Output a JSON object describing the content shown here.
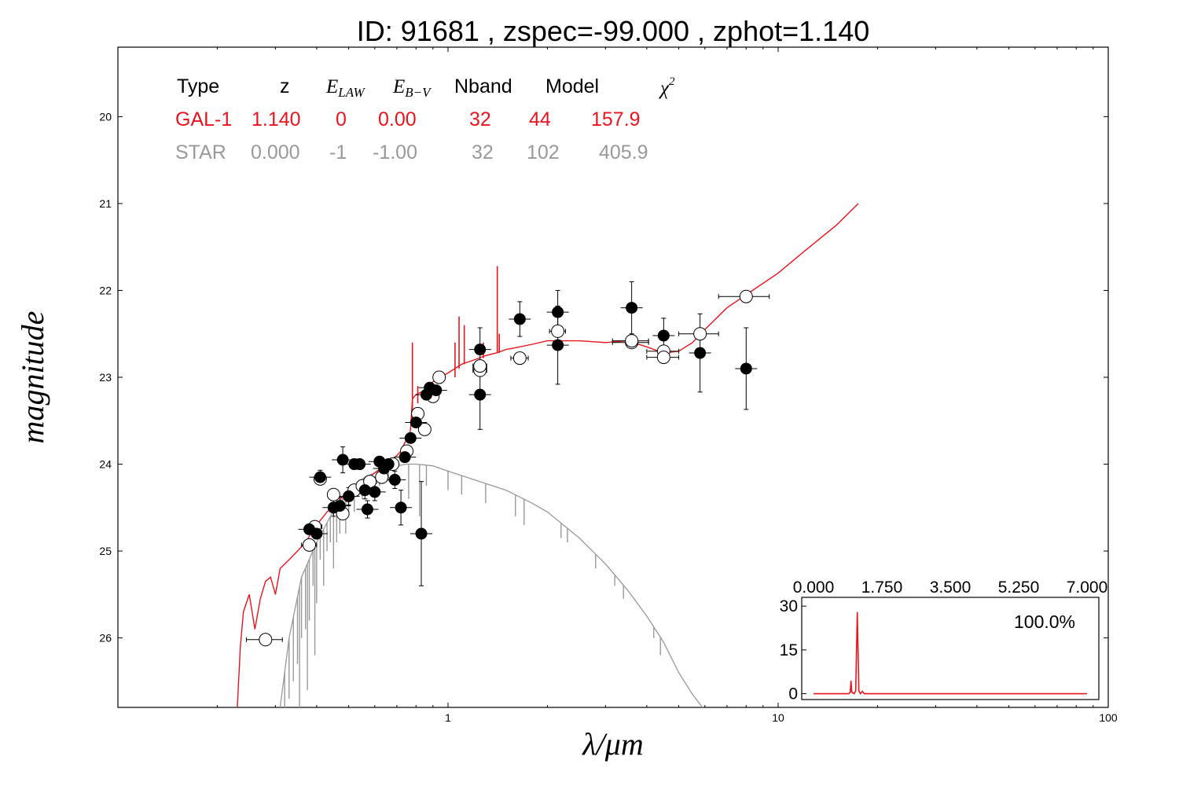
{
  "title": "ID:  91681 , zspec=-99.000 , zphot=1.140",
  "colors": {
    "galaxy": "#e8141e",
    "star": "#999999",
    "errorbar": "#000000",
    "axis": "#000000"
  },
  "table": {
    "headers": [
      "Type",
      "z",
      "E",
      "E",
      "Nband",
      "Model",
      "χ"
    ],
    "header_subscripts": {
      "e_law": "LAW",
      "e_bv": "B−V",
      "chi_sup": "2"
    },
    "rows": [
      {
        "type": "GAL-1",
        "z": "1.140",
        "law": "0",
        "ebv": "0.00",
        "nband": "32",
        "model": "44",
        "chi2": "157.9",
        "color": "#e8141e"
      },
      {
        "type": "STAR",
        "z": "0.000",
        "law": "-1",
        "ebv": "-1.00",
        "nband": "32",
        "model": "102",
        "chi2": "405.9",
        "color": "#999999"
      }
    ]
  },
  "chart_data": [
    {
      "type": "scatter",
      "xlabel": "λ/μm",
      "ylabel": "magnitude",
      "xscale": "log",
      "xlim": [
        0.1,
        100
      ],
      "ylim": [
        26.8,
        19.2
      ],
      "y_inverted": true,
      "xticks": [
        {
          "v": 1,
          "label": "1"
        },
        {
          "v": 10,
          "label": "10"
        },
        {
          "v": 100,
          "label": "100"
        }
      ],
      "yticks": [
        {
          "v": 20,
          "label": "20"
        },
        {
          "v": 21,
          "label": "21"
        },
        {
          "v": 22,
          "label": "22"
        },
        {
          "v": 23,
          "label": "23"
        },
        {
          "v": 24,
          "label": "24"
        },
        {
          "v": 25,
          "label": "25"
        },
        {
          "v": 26,
          "label": "26"
        }
      ],
      "series": [
        {
          "kind": "model_line",
          "color": "#e8141e",
          "points": [
            [
              0.23,
              26.8
            ],
            [
              0.235,
              26.1
            ],
            [
              0.24,
              25.7
            ],
            [
              0.25,
              25.5
            ],
            [
              0.26,
              25.9
            ],
            [
              0.27,
              25.55
            ],
            [
              0.28,
              25.35
            ],
            [
              0.29,
              25.3
            ],
            [
              0.3,
              25.5
            ],
            [
              0.31,
              25.2
            ],
            [
              0.33,
              25.1
            ],
            [
              0.35,
              25.0
            ],
            [
              0.37,
              24.9
            ],
            [
              0.4,
              24.7
            ],
            [
              0.43,
              24.55
            ],
            [
              0.46,
              24.45
            ],
            [
              0.5,
              24.3
            ],
            [
              0.55,
              24.2
            ],
            [
              0.6,
              24.1
            ],
            [
              0.65,
              24.0
            ],
            [
              0.7,
              23.9
            ],
            [
              0.72,
              23.85
            ],
            [
              0.74,
              23.75
            ],
            [
              0.76,
              23.7
            ],
            [
              0.77,
              23.6
            ],
            [
              0.78,
              23.25
            ],
            [
              0.8,
              23.2
            ],
            [
              0.85,
              23.15
            ],
            [
              0.9,
              23.05
            ],
            [
              0.95,
              23.0
            ],
            [
              1.0,
              22.95
            ],
            [
              1.05,
              22.9
            ],
            [
              1.1,
              22.85
            ],
            [
              1.2,
              22.8
            ],
            [
              1.3,
              22.75
            ],
            [
              1.4,
              22.72
            ],
            [
              1.5,
              22.68
            ],
            [
              1.6,
              22.66
            ],
            [
              1.8,
              22.62
            ],
            [
              2.0,
              22.58
            ],
            [
              2.5,
              22.58
            ],
            [
              3.0,
              22.6
            ],
            [
              3.5,
              22.58
            ],
            [
              4.0,
              22.65
            ],
            [
              4.5,
              22.72
            ],
            [
              5.0,
              22.7
            ],
            [
              5.5,
              22.6
            ],
            [
              6.0,
              22.45
            ],
            [
              7.0,
              22.2
            ],
            [
              8.0,
              22.05
            ],
            [
              10.0,
              21.8
            ],
            [
              12.0,
              21.55
            ],
            [
              15.0,
              21.25
            ],
            [
              17.5,
              21.0
            ]
          ]
        },
        {
          "kind": "model_spikes",
          "color": "#e8141e",
          "spikes": [
            [
              0.78,
              22.6,
              23.5
            ],
            [
              0.81,
              23.1,
              23.3
            ],
            [
              1.05,
              22.6,
              23.0
            ],
            [
              1.08,
              22.3,
              22.9
            ],
            [
              1.12,
              22.4,
              22.85
            ],
            [
              1.28,
              22.6,
              22.78
            ],
            [
              1.41,
              21.72,
              22.72
            ],
            [
              1.43,
              22.5,
              22.72
            ]
          ]
        },
        {
          "kind": "star_line",
          "color": "#999999",
          "points": [
            [
              0.31,
              26.8
            ],
            [
              0.33,
              26.0
            ],
            [
              0.36,
              25.3
            ],
            [
              0.4,
              24.9
            ],
            [
              0.44,
              24.6
            ],
            [
              0.48,
              24.4
            ],
            [
              0.52,
              24.25
            ],
            [
              0.56,
              24.15
            ],
            [
              0.6,
              24.1
            ],
            [
              0.65,
              24.05
            ],
            [
              0.7,
              24.02
            ],
            [
              0.75,
              24.0
            ],
            [
              0.8,
              24.0
            ],
            [
              0.9,
              24.02
            ],
            [
              1.0,
              24.08
            ],
            [
              1.2,
              24.18
            ],
            [
              1.5,
              24.3
            ],
            [
              1.8,
              24.45
            ],
            [
              2.0,
              24.55
            ],
            [
              2.5,
              24.85
            ],
            [
              3.0,
              25.15
            ],
            [
              3.5,
              25.45
            ],
            [
              4.0,
              25.75
            ],
            [
              4.5,
              26.05
            ],
            [
              5.0,
              26.4
            ],
            [
              5.5,
              26.65
            ],
            [
              5.9,
              26.8
            ]
          ]
        },
        {
          "kind": "star_absorption",
          "color": "#999999",
          "lines": [
            [
              0.32,
              26.8
            ],
            [
              0.33,
              26.7
            ],
            [
              0.34,
              26.5
            ],
            [
              0.35,
              26.3
            ],
            [
              0.355,
              26.8
            ],
            [
              0.36,
              26.0
            ],
            [
              0.37,
              25.9
            ],
            [
              0.375,
              26.6
            ],
            [
              0.38,
              25.8
            ],
            [
              0.39,
              25.4
            ],
            [
              0.395,
              26.2
            ],
            [
              0.4,
              25.6
            ],
            [
              0.41,
              25.1
            ],
            [
              0.42,
              25.4
            ],
            [
              0.43,
              25.0
            ],
            [
              0.44,
              24.9
            ],
            [
              0.45,
              25.2
            ],
            [
              0.46,
              24.9
            ],
            [
              0.47,
              24.8
            ],
            [
              0.48,
              24.6
            ],
            [
              0.49,
              24.8
            ],
            [
              0.5,
              24.6
            ],
            [
              0.52,
              24.55
            ],
            [
              0.55,
              24.4
            ],
            [
              0.58,
              24.3
            ],
            [
              0.62,
              24.25
            ],
            [
              0.66,
              24.2
            ],
            [
              0.76,
              24.4
            ],
            [
              0.82,
              24.6
            ],
            [
              0.86,
              24.25
            ],
            [
              1.0,
              24.3
            ],
            [
              1.1,
              24.35
            ],
            [
              1.3,
              24.45
            ],
            [
              1.6,
              24.6
            ],
            [
              1.7,
              24.7
            ],
            [
              2.2,
              24.85
            ],
            [
              2.3,
              24.9
            ],
            [
              2.8,
              25.2
            ],
            [
              3.2,
              25.4
            ],
            [
              3.4,
              25.55
            ],
            [
              4.2,
              26.0
            ],
            [
              4.4,
              26.2
            ]
          ]
        },
        {
          "kind": "observed",
          "marker": "filled_circle",
          "points": [
            {
              "x": 0.38,
              "y": 24.75,
              "e": 0.05
            },
            {
              "x": 0.4,
              "y": 24.8,
              "e": 0.06
            },
            {
              "x": 0.41,
              "y": 24.15,
              "e": 0.08
            },
            {
              "x": 0.45,
              "y": 24.5,
              "e": 0.1
            },
            {
              "x": 0.47,
              "y": 24.48,
              "e": 0.1
            },
            {
              "x": 0.48,
              "y": 23.95,
              "e": 0.15
            },
            {
              "x": 0.5,
              "y": 24.37,
              "e": 0.1
            },
            {
              "x": 0.52,
              "y": 24.0,
              "e": 0.06
            },
            {
              "x": 0.54,
              "y": 24.0,
              "e": 0.06
            },
            {
              "x": 0.56,
              "y": 24.3,
              "e": 0.1
            },
            {
              "x": 0.57,
              "y": 24.52,
              "e": 0.1
            },
            {
              "x": 0.6,
              "y": 24.32,
              "e": 0.1
            },
            {
              "x": 0.62,
              "y": 23.97,
              "e": 0.05
            },
            {
              "x": 0.64,
              "y": 24.05,
              "e": 0.05
            },
            {
              "x": 0.66,
              "y": 24.0,
              "e": 0.05
            },
            {
              "x": 0.69,
              "y": 24.18,
              "e": 0.1
            },
            {
              "x": 0.72,
              "y": 24.5,
              "e": 0.2
            },
            {
              "x": 0.74,
              "y": 23.92,
              "e": 0.05
            },
            {
              "x": 0.77,
              "y": 23.7,
              "e": 0.05
            },
            {
              "x": 0.8,
              "y": 23.52,
              "e": 0.05
            },
            {
              "x": 0.83,
              "y": 24.8,
              "e": 0.6
            },
            {
              "x": 0.86,
              "y": 23.2,
              "e": 0.05
            },
            {
              "x": 0.88,
              "y": 23.12,
              "e": 0.05
            },
            {
              "x": 0.92,
              "y": 23.15,
              "e": 0.05
            },
            {
              "x": 1.25,
              "y": 22.68,
              "e": 0.25
            },
            {
              "x": 1.25,
              "y": 23.2,
              "e": 0.4
            },
            {
              "x": 1.65,
              "y": 22.33,
              "e": 0.2
            },
            {
              "x": 2.15,
              "y": 22.25,
              "e": 0.25
            },
            {
              "x": 2.15,
              "y": 22.63,
              "e": 0.45
            },
            {
              "x": 3.6,
              "y": 22.2,
              "e": 0.3
            },
            {
              "x": 4.5,
              "y": 22.52,
              "e": 0.2
            },
            {
              "x": 5.8,
              "y": 22.72,
              "e": 0.45
            },
            {
              "x": 8.0,
              "y": 22.9,
              "e": 0.47
            }
          ]
        },
        {
          "kind": "model_mags",
          "marker": "open_circle",
          "points": [
            {
              "x": 0.28,
              "y": 26.02,
              "xe": 0.035
            },
            {
              "x": 0.38,
              "y": 24.93,
              "xe": 0.02
            },
            {
              "x": 0.395,
              "y": 24.72,
              "xe": 0.02
            },
            {
              "x": 0.41,
              "y": 24.17,
              "xe": 0.015
            },
            {
              "x": 0.45,
              "y": 24.35,
              "xe": 0.015
            },
            {
              "x": 0.48,
              "y": 24.57,
              "xe": 0.015
            },
            {
              "x": 0.52,
              "y": 24.3,
              "xe": 0.015
            },
            {
              "x": 0.55,
              "y": 24.25,
              "xe": 0.015
            },
            {
              "x": 0.58,
              "y": 24.2,
              "xe": 0.02
            },
            {
              "x": 0.63,
              "y": 24.15,
              "xe": 0.02
            },
            {
              "x": 0.68,
              "y": 24.0,
              "xe": 0.02
            },
            {
              "x": 0.75,
              "y": 23.85,
              "xe": 0.02
            },
            {
              "x": 0.81,
              "y": 23.42,
              "xe": 0.02
            },
            {
              "x": 0.85,
              "y": 23.6,
              "xe": 0.02
            },
            {
              "x": 0.9,
              "y": 23.22,
              "xe": 0.02
            },
            {
              "x": 0.94,
              "y": 23.0,
              "xe": 0.03
            },
            {
              "x": 1.25,
              "y": 22.92,
              "xe": 0.06
            },
            {
              "x": 1.25,
              "y": 22.87,
              "xe": 0.06
            },
            {
              "x": 1.65,
              "y": 22.78,
              "xe": 0.1
            },
            {
              "x": 2.15,
              "y": 22.47,
              "xe": 0.12
            },
            {
              "x": 3.6,
              "y": 22.6,
              "xe": 0.45
            },
            {
              "x": 3.6,
              "y": 22.58,
              "xe": 0.45
            },
            {
              "x": 4.5,
              "y": 22.7,
              "xe": 0.5
            },
            {
              "x": 4.5,
              "y": 22.77,
              "xe": 0.5
            },
            {
              "x": 5.8,
              "y": 22.5,
              "xe": 0.8
            },
            {
              "x": 8.0,
              "y": 22.07,
              "xe": 1.4
            }
          ]
        }
      ]
    },
    {
      "type": "line",
      "role": "photo-z probability distribution (inset)",
      "xlim": [
        0.0,
        7.0
      ],
      "ylim": [
        -2,
        33
      ],
      "xticks": [
        {
          "v": 0.0,
          "label": "0.000"
        },
        {
          "v": 1.75,
          "label": "1.750"
        },
        {
          "v": 3.5,
          "label": "3.500"
        },
        {
          "v": 5.25,
          "label": "5.250"
        },
        {
          "v": 7.0,
          "label": "7.000"
        }
      ],
      "yticks": [
        {
          "v": 0,
          "label": "0"
        },
        {
          "v": 15,
          "label": "15"
        },
        {
          "v": 30,
          "label": "30"
        }
      ],
      "annotation": "100.0%",
      "color": "#e8141e",
      "points": [
        [
          0.0,
          0
        ],
        [
          0.9,
          0
        ],
        [
          0.94,
          0.5
        ],
        [
          0.96,
          4.5
        ],
        [
          0.98,
          0.5
        ],
        [
          1.04,
          0
        ],
        [
          1.08,
          1
        ],
        [
          1.12,
          28
        ],
        [
          1.16,
          1
        ],
        [
          1.2,
          0
        ],
        [
          1.25,
          0.8
        ],
        [
          1.3,
          0
        ],
        [
          7.0,
          0
        ]
      ]
    }
  ]
}
